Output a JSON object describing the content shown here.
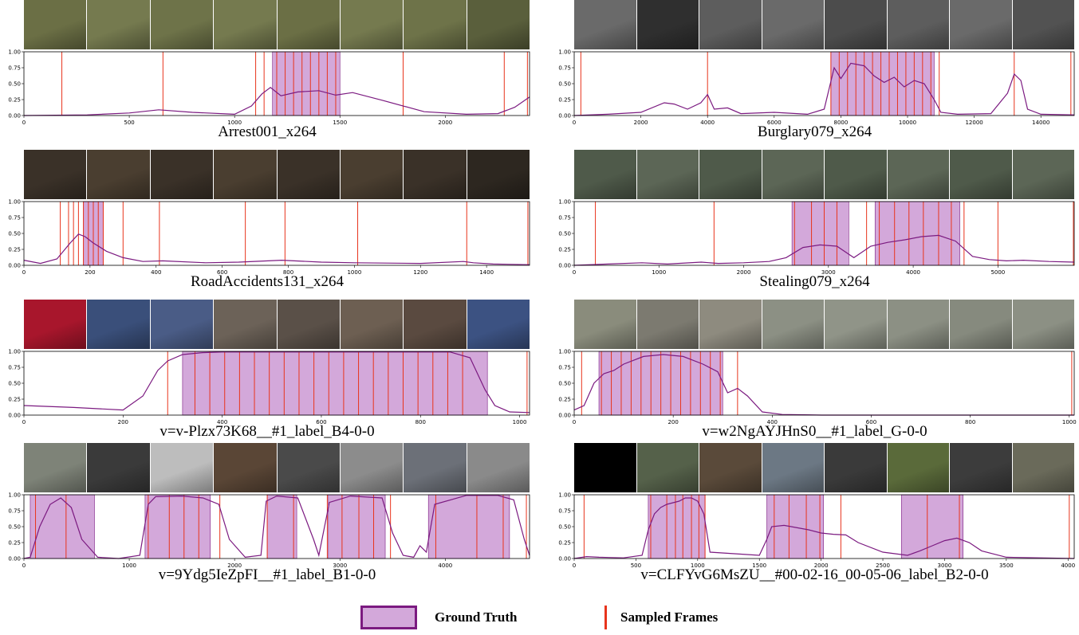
{
  "colors": {
    "ground_truth_fill": "#d3a8da",
    "curve": "#7b1a80",
    "sampled_frame": "#e8341c"
  },
  "legend": {
    "ground_truth": "Ground Truth",
    "sampled_frames": "Sampled Frames"
  },
  "chart_data": [
    {
      "type": "line",
      "caption": "Arrest001_x264",
      "xlim": [
        0,
        2400
      ],
      "ylim": [
        0,
        1.0
      ],
      "xticks": [
        0,
        500,
        1000,
        1500,
        2000
      ],
      "yticks": [
        "0.00",
        "0.25",
        "0.50",
        "0.75",
        "1.00"
      ],
      "frame_palette": [
        "#6b6f45",
        "#757a4f",
        "#6e7349",
        "#757a4f",
        "#6b6f45",
        "#757a4f",
        "#6e7349",
        "#5a5f3c"
      ],
      "series": [
        {
          "x": [
            0,
            300,
            500,
            640,
            800,
            1000,
            1080,
            1130,
            1170,
            1220,
            1300,
            1400,
            1480,
            1560,
            1700,
            1900,
            2100,
            2250,
            2330,
            2400
          ],
          "y": [
            0,
            0.01,
            0.04,
            0.09,
            0.05,
            0.02,
            0.15,
            0.34,
            0.44,
            0.31,
            0.37,
            0.39,
            0.32,
            0.36,
            0.24,
            0.06,
            0.02,
            0.03,
            0.13,
            0.29
          ]
        }
      ],
      "ground_truth": [
        [
          1180,
          1500
        ]
      ],
      "sampled_frames": [
        180,
        660,
        1100,
        1140,
        1200,
        1240,
        1280,
        1320,
        1360,
        1400,
        1440,
        1480,
        1800,
        2280,
        2390
      ]
    },
    {
      "type": "line",
      "caption": "Burglary079_x264",
      "xlim": [
        0,
        15000
      ],
      "ylim": [
        0,
        1.0
      ],
      "xticks": [
        0,
        2000,
        4000,
        6000,
        8000,
        10000,
        12000,
        14000
      ],
      "yticks": [
        "0.00",
        "0.25",
        "0.50",
        "0.75",
        "1.00"
      ],
      "frame_palette": [
        "#6a6a6a",
        "#2f2f2f",
        "#5d5d5d",
        "#6a6a6a",
        "#4c4c4c",
        "#5d5d5d",
        "#6a6a6a",
        "#525252"
      ],
      "series": [
        {
          "x": [
            0,
            1000,
            2000,
            2700,
            3000,
            3400,
            3800,
            4000,
            4200,
            4600,
            5000,
            6000,
            7000,
            7500,
            7800,
            8000,
            8300,
            8700,
            9000,
            9300,
            9600,
            9900,
            10200,
            10500,
            10800,
            11000,
            11500,
            12500,
            13000,
            13200,
            13400,
            13600,
            14000,
            15000
          ],
          "y": [
            0,
            0.02,
            0.05,
            0.2,
            0.18,
            0.1,
            0.2,
            0.33,
            0.1,
            0.12,
            0.03,
            0.05,
            0.02,
            0.1,
            0.75,
            0.58,
            0.82,
            0.78,
            0.62,
            0.52,
            0.6,
            0.45,
            0.55,
            0.5,
            0.25,
            0.05,
            0.02,
            0.03,
            0.35,
            0.65,
            0.55,
            0.1,
            0.02,
            0.01
          ]
        }
      ],
      "ground_truth": [
        [
          7700,
          10800
        ]
      ],
      "sampled_frames": [
        200,
        4000,
        7700,
        7950,
        8200,
        8450,
        8700,
        8950,
        9200,
        9450,
        9700,
        9950,
        10200,
        10450,
        10700,
        10950,
        13200,
        14900
      ]
    },
    {
      "type": "line",
      "caption": "RoadAccidents131_x264",
      "xlim": [
        0,
        1530
      ],
      "ylim": [
        0,
        1.0
      ],
      "xticks": [
        0,
        200,
        400,
        600,
        800,
        1000,
        1200,
        1400
      ],
      "yticks": [
        "0.00",
        "0.25",
        "0.50",
        "0.75",
        "1.00"
      ],
      "frame_palette": [
        "#3a3128",
        "#4a3e30",
        "#3a3128",
        "#4a3e30",
        "#3a3128",
        "#4a3e30",
        "#3a3128",
        "#2d2720"
      ],
      "series": [
        {
          "x": [
            0,
            50,
            100,
            140,
            165,
            185,
            210,
            250,
            300,
            360,
            420,
            550,
            650,
            780,
            900,
            1000,
            1200,
            1330,
            1360,
            1420,
            1530
          ],
          "y": [
            0.08,
            0.03,
            0.1,
            0.35,
            0.49,
            0.45,
            0.35,
            0.22,
            0.12,
            0.06,
            0.07,
            0.04,
            0.05,
            0.08,
            0.05,
            0.04,
            0.03,
            0.06,
            0.04,
            0.02,
            0.01
          ]
        }
      ],
      "ground_truth": [
        [
          180,
          240
        ]
      ],
      "sampled_frames": [
        110,
        135,
        150,
        165,
        180,
        195,
        210,
        225,
        240,
        300,
        410,
        670,
        790,
        1010,
        1340,
        1525
      ]
    },
    {
      "type": "line",
      "caption": "Stealing079_x264",
      "xlim": [
        0,
        5900
      ],
      "ylim": [
        0,
        1.0
      ],
      "xticks": [
        0,
        1000,
        2000,
        3000,
        4000,
        5000
      ],
      "yticks": [
        "0.00",
        "0.25",
        "0.50",
        "0.75",
        "1.00"
      ],
      "frame_palette": [
        "#4f5a4a",
        "#5c6656",
        "#4f5a4a",
        "#5c6656",
        "#4f5a4a",
        "#5c6656",
        "#4f5a4a",
        "#5c6656"
      ],
      "series": [
        {
          "x": [
            0,
            400,
            800,
            1100,
            1500,
            1700,
            2000,
            2300,
            2500,
            2700,
            2900,
            3100,
            3300,
            3500,
            3700,
            3900,
            4100,
            4300,
            4500,
            4700,
            4900,
            5100,
            5300,
            5600,
            5900
          ],
          "y": [
            0,
            0.02,
            0.04,
            0.02,
            0.05,
            0.03,
            0.04,
            0.06,
            0.12,
            0.28,
            0.32,
            0.3,
            0.12,
            0.3,
            0.36,
            0.4,
            0.45,
            0.47,
            0.38,
            0.14,
            0.09,
            0.07,
            0.08,
            0.06,
            0.05
          ]
        }
      ],
      "ground_truth": [
        [
          2570,
          3240
        ],
        [
          3550,
          4550
        ]
      ],
      "sampled_frames": [
        250,
        1650,
        2600,
        2800,
        2950,
        3100,
        3450,
        3600,
        3780,
        3950,
        4120,
        4300,
        4450,
        4600,
        5000,
        5890
      ]
    },
    {
      "type": "line",
      "caption": "v=v-Plzx73K68__#1_label_B4-0-0",
      "xlim": [
        0,
        1020
      ],
      "ylim": [
        0,
        1.0
      ],
      "xticks": [
        0,
        200,
        400,
        600,
        800,
        1000
      ],
      "yticks": [
        "0.00",
        "0.25",
        "0.50",
        "0.75",
        "1.00"
      ],
      "frame_palette": [
        "#a8162c",
        "#3a4f7a",
        "#4a5c86",
        "#6c6258",
        "#5a5048",
        "#6d5f52",
        "#5a4a40",
        "#3c5282"
      ],
      "series": [
        {
          "x": [
            0,
            100,
            200,
            240,
            270,
            290,
            320,
            360,
            400,
            500,
            600,
            700,
            780,
            860,
            900,
            930,
            950,
            980,
            1020
          ],
          "y": [
            0.15,
            0.12,
            0.08,
            0.3,
            0.7,
            0.85,
            0.95,
            0.98,
            0.99,
            0.99,
            0.99,
            0.99,
            0.99,
            0.99,
            0.9,
            0.4,
            0.15,
            0.05,
            0.04
          ]
        }
      ],
      "ground_truth": [
        [
          320,
          935
        ]
      ],
      "sampled_frames": [
        290,
        345,
        375,
        405,
        435,
        465,
        495,
        525,
        555,
        585,
        615,
        645,
        675,
        705,
        735,
        765,
        795,
        825,
        855,
        885,
        1015
      ]
    },
    {
      "type": "line",
      "caption": "v=w2NgAYJHnS0__#1_label_G-0-0",
      "xlim": [
        0,
        1010
      ],
      "ylim": [
        0,
        1.0
      ],
      "xticks": [
        0,
        200,
        400,
        600,
        800,
        1000
      ],
      "yticks": [
        "0.00",
        "0.25",
        "0.50",
        "0.75",
        "1.00"
      ],
      "frame_palette": [
        "#8a8c7c",
        "#7c7a70",
        "#8e8b7f",
        "#8c9084",
        "#909488",
        "#8c9084",
        "#868a7e",
        "#8c9084"
      ],
      "series": [
        {
          "x": [
            0,
            20,
            40,
            60,
            80,
            100,
            140,
            180,
            220,
            260,
            290,
            310,
            330,
            350,
            380,
            420,
            500,
            700,
            1010
          ],
          "y": [
            0.08,
            0.15,
            0.5,
            0.65,
            0.7,
            0.8,
            0.92,
            0.95,
            0.92,
            0.8,
            0.68,
            0.35,
            0.42,
            0.3,
            0.05,
            0.01,
            0,
            0,
            0
          ]
        }
      ],
      "ground_truth": [
        [
          50,
          300
        ]
      ],
      "sampled_frames": [
        15,
        55,
        75,
        95,
        115,
        135,
        155,
        175,
        195,
        215,
        235,
        255,
        275,
        295,
        330,
        1005
      ]
    },
    {
      "type": "line",
      "caption": "v=9Ydg5IeZpFI__#1_label_B1-0-0",
      "xlim": [
        0,
        4800
      ],
      "ylim": [
        0,
        1.0
      ],
      "xticks": [
        0,
        1000,
        2000,
        3000,
        4000
      ],
      "yticks": [
        "0.00",
        "0.25",
        "0.50",
        "0.75",
        "1.00"
      ],
      "frame_palette": [
        "#7e8378",
        "#3a3a3a",
        "#bdbdbd",
        "#5a4636",
        "#4a4a4a",
        "#8c8c8c",
        "#6c7078",
        "#8a8a8a"
      ],
      "series": [
        {
          "x": [
            0,
            60,
            150,
            250,
            350,
            450,
            550,
            700,
            900,
            1100,
            1180,
            1250,
            1500,
            1700,
            1850,
            1950,
            2100,
            2250,
            2300,
            2400,
            2600,
            2750,
            2800,
            2900,
            3100,
            3400,
            3500,
            3600,
            3700,
            3760,
            3820,
            3900,
            4200,
            4500,
            4650,
            4750,
            4800
          ],
          "y": [
            0,
            0.02,
            0.5,
            0.85,
            0.95,
            0.8,
            0.3,
            0.02,
            0,
            0.05,
            0.85,
            0.97,
            0.98,
            0.95,
            0.85,
            0.3,
            0.02,
            0.05,
            0.9,
            0.98,
            0.95,
            0.3,
            0.05,
            0.88,
            0.98,
            0.95,
            0.4,
            0.05,
            0.02,
            0.2,
            0.1,
            0.85,
            0.99,
            0.99,
            0.92,
            0.3,
            0.05
          ]
        }
      ],
      "ground_truth": [
        [
          60,
          670
        ],
        [
          1150,
          1770
        ],
        [
          2310,
          2590
        ],
        [
          2890,
          3430
        ],
        [
          3840,
          4610
        ]
      ],
      "sampled_frames": [
        110,
        400,
        1180,
        1380,
        1520,
        1660,
        1860,
        2310,
        2560,
        2880,
        3020,
        3180,
        3320,
        3480,
        3910,
        4300,
        4550,
        4770
      ]
    },
    {
      "type": "line",
      "caption": "v=CLFYvG6MsZU__#00-02-16_00-05-06_label_B2-0-0",
      "xlim": [
        0,
        4050
      ],
      "ylim": [
        0,
        1.0
      ],
      "xticks": [
        0,
        500,
        1000,
        1500,
        2000,
        2500,
        3000,
        3500,
        4000
      ],
      "yticks": [
        "0.00",
        "0.25",
        "0.50",
        "0.75",
        "1.00"
      ],
      "frame_palette": [
        "#000000",
        "#55614a",
        "#5a4a3a",
        "#6c7884",
        "#3a3a3a",
        "#5a6a3a",
        "#3c3c3c",
        "#6a6a5a"
      ],
      "series": [
        {
          "x": [
            0,
            100,
            200,
            400,
            550,
            600,
            650,
            700,
            750,
            850,
            900,
            950,
            1000,
            1050,
            1100,
            1500,
            1560,
            1600,
            1700,
            1900,
            2000,
            2100,
            2200,
            2300,
            2500,
            2700,
            2800,
            2900,
            3000,
            3100,
            3200,
            3300,
            3500,
            4050
          ],
          "y": [
            0,
            0.03,
            0.02,
            0.01,
            0.05,
            0.45,
            0.7,
            0.8,
            0.85,
            0.9,
            0.95,
            0.95,
            0.9,
            0.7,
            0.1,
            0.05,
            0.3,
            0.5,
            0.52,
            0.45,
            0.4,
            0.38,
            0.37,
            0.25,
            0.1,
            0.05,
            0.12,
            0.2,
            0.28,
            0.32,
            0.25,
            0.12,
            0.02,
            0
          ]
        }
      ],
      "ground_truth": [
        [
          600,
          1060
        ],
        [
          1560,
          2020
        ],
        [
          2650,
          3150
        ]
      ],
      "sampled_frames": [
        80,
        620,
        750,
        820,
        880,
        950,
        1010,
        1060,
        1620,
        1740,
        1880,
        1990,
        2160,
        2860,
        3120,
        4010
      ]
    }
  ]
}
